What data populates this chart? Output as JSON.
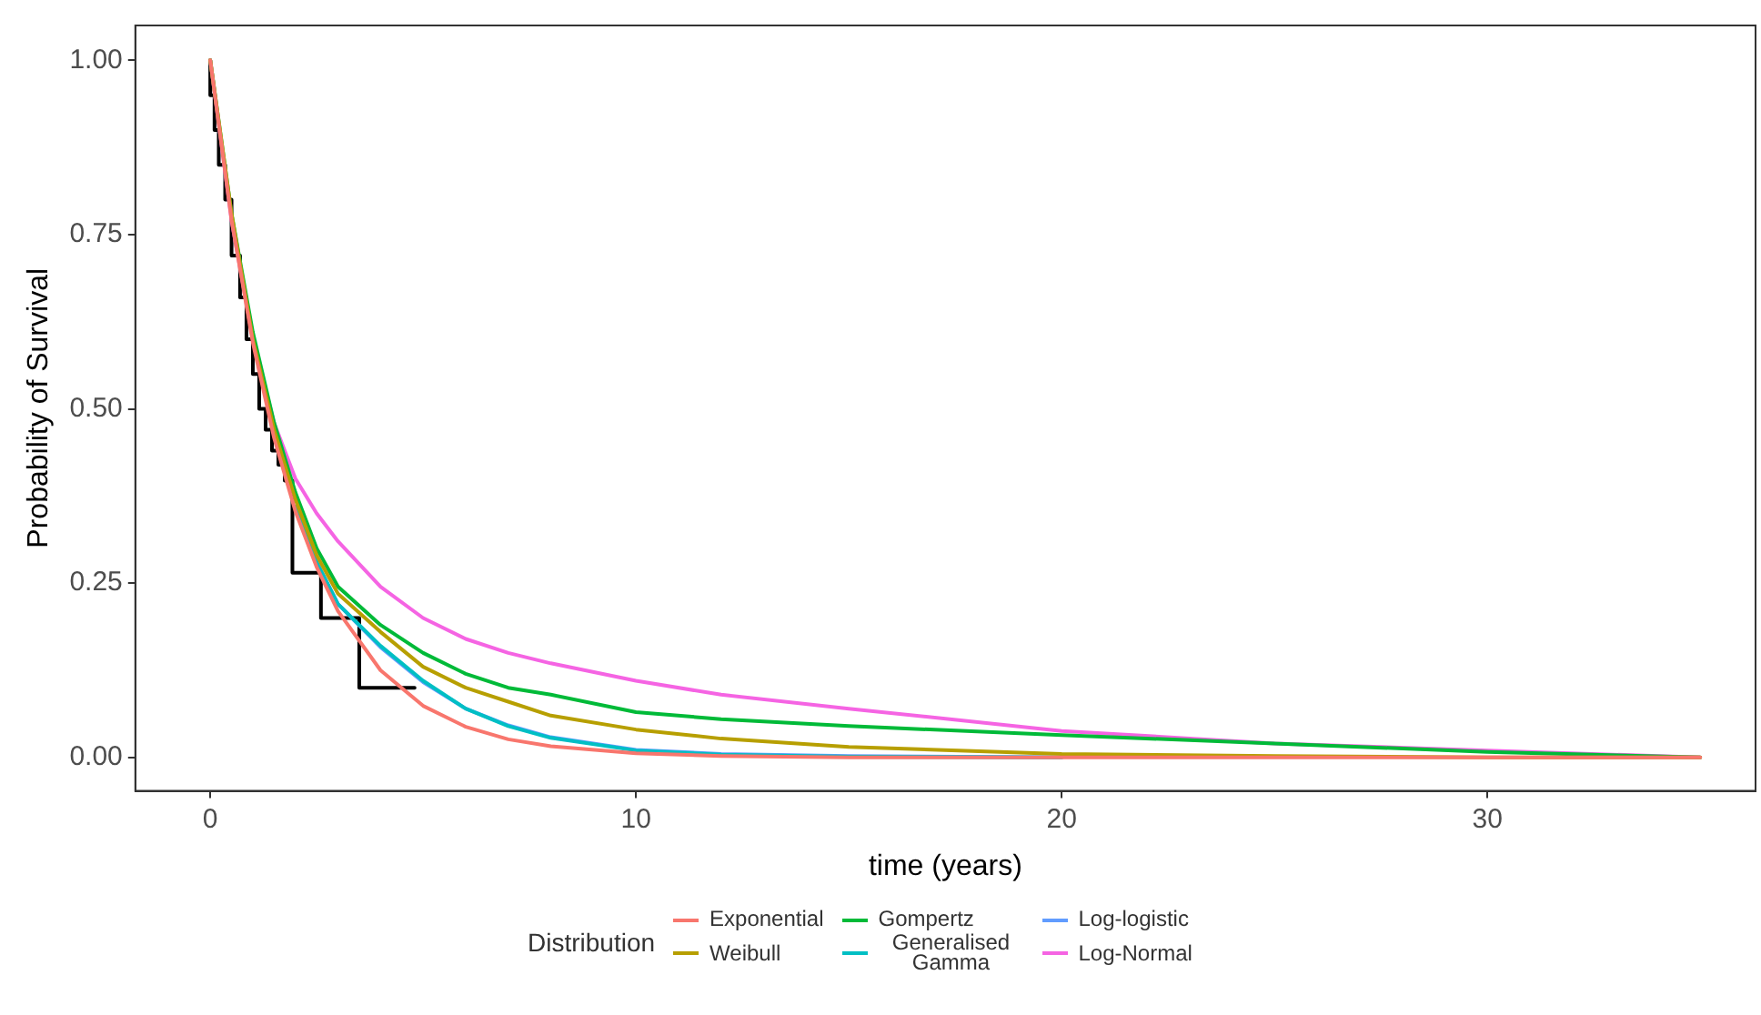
{
  "chart_data": {
    "type": "line",
    "xlabel": "time (years)",
    "ylabel": "Probability of Survival",
    "legend_title": "Distribution",
    "legend": "bottom",
    "grid": false,
    "marker": "none",
    "line_style": "solid",
    "xlim": [
      -1.76,
      36.3
    ],
    "ylim": [
      -0.048,
      1.05
    ],
    "xticks": [
      0,
      10,
      20,
      30
    ],
    "yticks": [
      {
        "value": 0,
        "label": "0.00"
      },
      {
        "value": 0.25,
        "label": "0.25"
      },
      {
        "value": 0.5,
        "label": "0.50"
      },
      {
        "value": 0.75,
        "label": "0.75"
      },
      {
        "value": 1,
        "label": "1.00"
      }
    ],
    "series": [
      {
        "name": "Exponential",
        "color": "#f8766d",
        "x": [
          0,
          0.5,
          1,
          1.5,
          2,
          2.5,
          3,
          4,
          5,
          6,
          7,
          8,
          10,
          12,
          15,
          20,
          25,
          30,
          35
        ],
        "values": [
          1,
          0.771,
          0.595,
          0.458,
          0.353,
          0.273,
          0.21,
          0.125,
          0.074,
          0.044,
          0.026,
          0.016,
          0.006,
          0.002,
          0,
          0,
          0,
          0,
          0
        ]
      },
      {
        "name": "Weibull",
        "color": "#b79f00",
        "x": [
          0,
          0.5,
          1,
          1.5,
          2,
          2.5,
          3,
          4,
          5,
          6,
          7,
          8,
          10,
          12,
          15,
          20,
          25,
          30,
          35
        ],
        "values": [
          1,
          0.78,
          0.6,
          0.47,
          0.37,
          0.29,
          0.235,
          0.18,
          0.13,
          0.1,
          0.08,
          0.06,
          0.04,
          0.027,
          0.015,
          0.005,
          0.002,
          0,
          0
        ]
      },
      {
        "name": "Gompertz",
        "color": "#00ba38",
        "x": [
          0,
          0.5,
          1,
          1.5,
          2,
          2.5,
          3,
          4,
          5,
          6,
          7,
          8,
          10,
          12,
          15,
          20,
          25,
          30,
          35
        ],
        "values": [
          1,
          0.78,
          0.61,
          0.48,
          0.38,
          0.3,
          0.245,
          0.19,
          0.15,
          0.12,
          0.1,
          0.09,
          0.065,
          0.055,
          0.045,
          0.032,
          0.02,
          0.008,
          0
        ]
      },
      {
        "name": "Generalised Gamma",
        "color": "#00bfc4",
        "x": [
          2,
          2.5,
          3,
          4,
          5,
          6,
          7,
          8,
          10,
          12,
          15,
          20
        ],
        "values": [
          0.36,
          0.28,
          0.22,
          0.16,
          0.11,
          0.07,
          0.045,
          0.028,
          0.01,
          0.004,
          0.001,
          0
        ]
      },
      {
        "name": "Log-logistic",
        "color": "#619cff",
        "x": [
          2,
          2.5,
          3,
          4,
          5,
          6,
          7,
          8,
          10,
          12,
          15,
          20
        ],
        "values": [
          0.36,
          0.28,
          0.22,
          0.158,
          0.108,
          0.07,
          0.046,
          0.029,
          0.011,
          0.005,
          0.002,
          0
        ]
      },
      {
        "name": "Log-Normal",
        "color": "#f564e3",
        "x": [
          0,
          0.5,
          1,
          1.5,
          2,
          2.5,
          3,
          4,
          5,
          6,
          7,
          8,
          10,
          12,
          15,
          20,
          25,
          30,
          35
        ],
        "values": [
          1,
          0.77,
          0.6,
          0.48,
          0.4,
          0.35,
          0.31,
          0.245,
          0.2,
          0.17,
          0.15,
          0.135,
          0.11,
          0.09,
          0.07,
          0.038,
          0.02,
          0.01,
          0
        ]
      },
      {
        "type": "step",
        "color": "#000000",
        "x": [
          0,
          0.1,
          0.2,
          0.35,
          0.5,
          0.7,
          0.85,
          1,
          1.15,
          1.3,
          1.45,
          1.6,
          1.75,
          1.93,
          2.6,
          3.5,
          3.8,
          4.8
        ],
        "values": [
          1,
          0.95,
          0.9,
          0.85,
          0.8,
          0.72,
          0.66,
          0.6,
          0.55,
          0.5,
          0.47,
          0.44,
          0.42,
          0.397,
          0.265,
          0.2,
          0.1,
          0.1
        ]
      }
    ]
  }
}
